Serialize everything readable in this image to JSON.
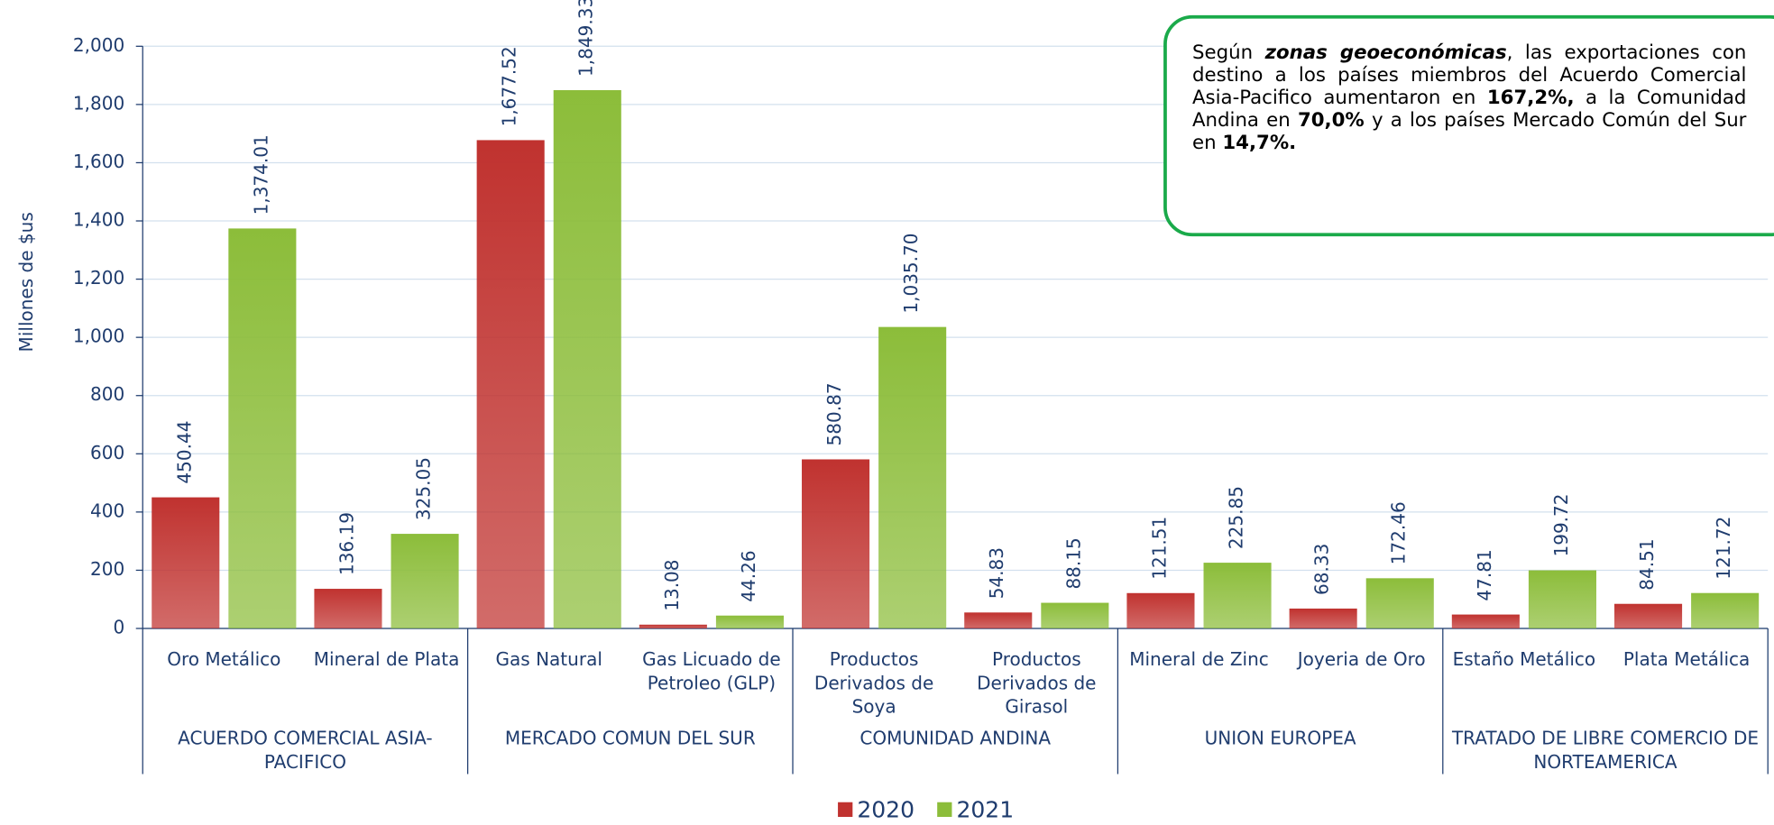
{
  "chart_data": {
    "type": "bar",
    "y_axis_label": "Millones de $us",
    "categories": [
      "Oro Metálico",
      "Mineral de Plata",
      "Gas Natural",
      "Gas Licuado de Petroleo (GLP)",
      "Productos Derivados de Soya",
      "Productos Derivados de Girasol",
      "Mineral de Zinc",
      "Joyeria de Oro",
      "Estaño Metálico",
      "Plata Metálica"
    ],
    "groups": [
      {
        "name": "ACUERDO COMERCIAL ASIA-PACIFICO",
        "span": 2
      },
      {
        "name": "MERCADO COMUN DEL SUR",
        "span": 2
      },
      {
        "name": "COMUNIDAD ANDINA",
        "span": 2
      },
      {
        "name": "UNION EUROPEA",
        "span": 2
      },
      {
        "name": "TRATADO DE LIBRE COMERCIO DE NORTEAMERICA",
        "span": 2
      }
    ],
    "series": [
      {
        "name": "2020",
        "color": "#c0322f",
        "values": [
          450.44,
          136.19,
          1677.52,
          13.08,
          580.87,
          54.83,
          121.51,
          68.33,
          47.81,
          84.51
        ],
        "value_labels": [
          "450.44",
          "136.19",
          "1,677.52",
          "13.08",
          "580.87",
          "54.83",
          "121.51",
          "68.33",
          "47.81",
          "84.51"
        ]
      },
      {
        "name": "2021",
        "color": "#8cbd3a",
        "values": [
          1374.01,
          325.05,
          1849.33,
          44.26,
          1035.7,
          88.15,
          225.85,
          172.46,
          199.72,
          121.72
        ],
        "value_labels": [
          "1,374.01",
          "325.05",
          "1,849.33",
          "44.26",
          "1,035.70",
          "88.15",
          "225.85",
          "172.46",
          "199.72",
          "121.72"
        ]
      }
    ],
    "ylim": [
      0,
      2000
    ],
    "yticks": [
      0,
      200,
      400,
      600,
      800,
      {
        "value": 1000,
        "label": "1,000"
      },
      {
        "value": 1200,
        "label": "1,200"
      },
      {
        "value": 1400,
        "label": "1,400"
      },
      {
        "value": 1600,
        "label": "1,600"
      },
      {
        "value": 1800,
        "label": "1,800"
      },
      {
        "value": 2000,
        "label": "2,000"
      }
    ],
    "grid": true,
    "legend": "bottom",
    "annotation": {
      "border_color": "#1aaa4a",
      "runs": [
        {
          "text": "Según ",
          "bold": false,
          "italic": false
        },
        {
          "text": "zonas geoeconómicas",
          "bold": true,
          "italic": true
        },
        {
          "text": ", las exportaciones con destino a los países miembros del Acuerdo Comercial Asia-Pacifico aumentaron en ",
          "bold": false,
          "italic": false
        },
        {
          "text": "167,2%,",
          "bold": true,
          "italic": false
        },
        {
          "text": " a la Comunidad Andina en ",
          "bold": false,
          "italic": false
        },
        {
          "text": "70,0%",
          "bold": true,
          "italic": false
        },
        {
          "text": " y a los países  Mercado Común del Sur en ",
          "bold": false,
          "italic": false
        },
        {
          "text": "14,7%.",
          "bold": true,
          "italic": false
        }
      ]
    }
  }
}
